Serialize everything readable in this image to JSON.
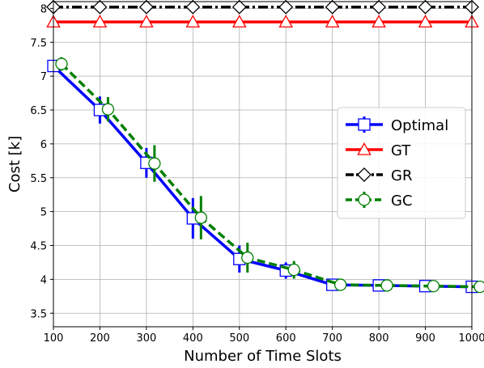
{
  "chart_data": {
    "type": "line",
    "title": "",
    "xlabel": "Number of Time Slots",
    "ylabel": "Cost [k]",
    "x": [
      100,
      200,
      300,
      400,
      500,
      600,
      700,
      800,
      900,
      1000
    ],
    "xlim": [
      100,
      1000
    ],
    "ylim": [
      3.3,
      8.1
    ],
    "x_ticks": [
      100,
      200,
      300,
      400,
      500,
      600,
      700,
      800,
      900,
      1000
    ],
    "y_ticks": [
      3.5,
      4,
      4.5,
      5,
      5.5,
      6,
      6.5,
      7,
      7.5,
      8
    ],
    "x_tick_labels": [
      "100",
      "200",
      "300",
      "400",
      "500",
      "600",
      "700",
      "800",
      "900",
      "1000"
    ],
    "y_tick_labels": [
      "3.5",
      "4",
      "4.5",
      "5",
      "5.5",
      "6",
      "6.5",
      "7",
      "7.5",
      "8"
    ],
    "grid": true,
    "legend_position": "right",
    "series": [
      {
        "name": "Optimal",
        "color": "#0000ff",
        "line": "solid",
        "marker": "square",
        "x_offset": 0,
        "values": [
          7.15,
          6.5,
          5.72,
          4.9,
          4.3,
          4.13,
          3.92,
          3.91,
          3.9,
          3.89
        ],
        "err": [
          0.08,
          0.2,
          0.22,
          0.3,
          0.2,
          0.12,
          0.03,
          0.03,
          0.02,
          0.03
        ]
      },
      {
        "name": "GT",
        "color": "#ff0000",
        "line": "solid",
        "marker": "triangle",
        "x_offset": 0,
        "values": [
          7.8,
          7.8,
          7.8,
          7.8,
          7.8,
          7.8,
          7.8,
          7.8,
          7.8,
          7.8
        ],
        "err": [
          0,
          0,
          0,
          0,
          0,
          0,
          0,
          0,
          0,
          0
        ]
      },
      {
        "name": "GR",
        "color": "#000000",
        "line": "dashdot",
        "marker": "diamond",
        "x_offset": 0,
        "values": [
          8.02,
          8.02,
          8.02,
          8.02,
          8.02,
          8.02,
          8.02,
          8.02,
          8.02,
          8.02
        ],
        "err": [
          0,
          0,
          0,
          0,
          0,
          0,
          0,
          0,
          0,
          0
        ]
      },
      {
        "name": "GC",
        "color": "#008000",
        "line": "dashed",
        "marker": "circle",
        "x_offset": 10,
        "values": [
          7.18,
          6.51,
          5.71,
          4.91,
          4.32,
          4.14,
          3.92,
          3.91,
          3.9,
          3.89
        ],
        "err": [
          0.1,
          0.18,
          0.27,
          0.32,
          0.22,
          0.13,
          0.03,
          0.03,
          0.02,
          0.03
        ]
      }
    ]
  }
}
